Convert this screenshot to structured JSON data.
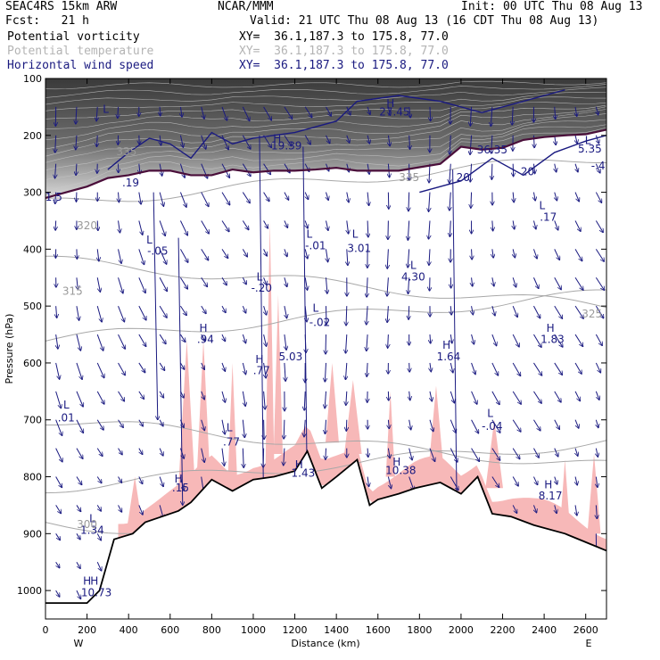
{
  "header": {
    "model": "SEAC4RS 15km ARW",
    "forecast": "Fcst:   21 h",
    "org": "NCAR/MMM",
    "init": "Init: 00 UTC Thu 08 Aug 13",
    "valid": "Valid: 21 UTC Thu 08 Aug 13 (16 CDT Thu 08 Aug 13)",
    "legend": [
      {
        "name": "Potential vorticity",
        "xy": "XY=  36.1,187.3 to 175.8, 77.0",
        "color": "#000000"
      },
      {
        "name": "Potential temperature",
        "xy": "XY=  36.1,187.3 to 175.8, 77.0",
        "color": "#b4b4b4"
      },
      {
        "name": "Horizontal wind speed",
        "xy": "XY=  36.1,187.3 to 175.8, 77.0",
        "color": "#1a1a80"
      }
    ]
  },
  "chart_data": {
    "type": "cross-section",
    "xlabel": "Distance (km)",
    "ylabel": "Pressure (hPa)",
    "xlim": [
      0,
      2700
    ],
    "ylim": [
      1050,
      100
    ],
    "x_ticks": [
      0,
      200,
      400,
      600,
      800,
      1000,
      1200,
      1400,
      1600,
      1800,
      2000,
      2200,
      2400,
      2600
    ],
    "y_ticks": [
      100,
      200,
      300,
      400,
      500,
      600,
      700,
      800,
      900,
      1000
    ],
    "x_end_labels": {
      "left": "W",
      "right": "E"
    },
    "terrain": [
      [
        0,
        1022
      ],
      [
        200,
        1022
      ],
      [
        260,
        1000
      ],
      [
        330,
        910
      ],
      [
        420,
        900
      ],
      [
        480,
        880
      ],
      [
        560,
        870
      ],
      [
        640,
        860
      ],
      [
        700,
        845
      ],
      [
        800,
        805
      ],
      [
        900,
        825
      ],
      [
        1000,
        805
      ],
      [
        1100,
        800
      ],
      [
        1200,
        790
      ],
      [
        1260,
        755
      ],
      [
        1330,
        820
      ],
      [
        1400,
        800
      ],
      [
        1500,
        770
      ],
      [
        1560,
        850
      ],
      [
        1600,
        840
      ],
      [
        1700,
        830
      ],
      [
        1780,
        820
      ],
      [
        1900,
        810
      ],
      [
        2000,
        830
      ],
      [
        2080,
        800
      ],
      [
        2150,
        865
      ],
      [
        2240,
        870
      ],
      [
        2350,
        885
      ],
      [
        2500,
        900
      ],
      [
        2600,
        915
      ],
      [
        2700,
        930
      ]
    ],
    "dynamic_tropopause": [
      [
        0,
        310
      ],
      [
        100,
        300
      ],
      [
        200,
        290
      ],
      [
        300,
        275
      ],
      [
        400,
        270
      ],
      [
        500,
        262
      ],
      [
        600,
        262
      ],
      [
        700,
        270
      ],
      [
        800,
        270
      ],
      [
        900,
        260
      ],
      [
        1000,
        265
      ],
      [
        1100,
        262
      ],
      [
        1200,
        262
      ],
      [
        1300,
        260
      ],
      [
        1400,
        257
      ],
      [
        1500,
        262
      ],
      [
        1600,
        262
      ],
      [
        1700,
        262
      ],
      [
        1800,
        256
      ],
      [
        1900,
        250
      ],
      [
        2000,
        220
      ],
      [
        2100,
        225
      ],
      [
        2200,
        222
      ],
      [
        2300,
        208
      ],
      [
        2400,
        203
      ],
      [
        2500,
        200
      ],
      [
        2600,
        198
      ],
      [
        2700,
        190
      ]
    ],
    "theta_levels": [
      300,
      315,
      320,
      325,
      335
    ],
    "pv_labels": [
      {
        "text": "L",
        "x": 290,
        "p": 160
      },
      {
        "text": "H",
        "x": 1115,
        "p": 212
      },
      {
        "text": "19.39",
        "x": 1160,
        "p": 225
      },
      {
        "text": "H",
        "x": 1660,
        "p": 150
      },
      {
        "text": "27.45",
        "x": 1680,
        "p": 165
      },
      {
        "text": "36.35",
        "x": 2150,
        "p": 232
      },
      {
        "text": "L",
        "x": 2610,
        "p": 215
      },
      {
        "text": "5.35",
        "x": 2620,
        "p": 230
      },
      {
        "text": "-.4",
        "x": 2660,
        "p": 260
      },
      {
        "text": "L",
        "x": 2390,
        "p": 330
      },
      {
        "text": ".17",
        "x": 2420,
        "p": 350
      },
      {
        "text": ".19",
        "x": 410,
        "p": 290
      },
      {
        "text": "1.5",
        "x": 40,
        "p": 315
      },
      {
        "text": "L",
        "x": 500,
        "p": 390
      },
      {
        "text": "-.05",
        "x": 540,
        "p": 410
      },
      {
        "text": "L",
        "x": 1270,
        "p": 380
      },
      {
        "text": "-.01",
        "x": 1300,
        "p": 400
      },
      {
        "text": "L",
        "x": 1490,
        "p": 380
      },
      {
        "text": "3.01",
        "x": 1510,
        "p": 405
      },
      {
        "text": "L",
        "x": 1770,
        "p": 435
      },
      {
        "text": "4.30",
        "x": 1770,
        "p": 455
      },
      {
        "text": "L",
        "x": 1030,
        "p": 455
      },
      {
        "text": "-.20",
        "x": 1040,
        "p": 475
      },
      {
        "text": "L",
        "x": 1300,
        "p": 510
      },
      {
        "text": "-.02",
        "x": 1320,
        "p": 535
      },
      {
        "text": "H",
        "x": 760,
        "p": 545
      },
      {
        "text": ".94",
        "x": 770,
        "p": 565
      },
      {
        "text": "5.03",
        "x": 1180,
        "p": 595
      },
      {
        "text": "H",
        "x": 1030,
        "p": 600
      },
      {
        "text": ".77",
        "x": 1040,
        "p": 620
      },
      {
        "text": "H",
        "x": 1930,
        "p": 575
      },
      {
        "text": "1.64",
        "x": 1940,
        "p": 595
      },
      {
        "text": "H",
        "x": 2430,
        "p": 545
      },
      {
        "text": "1.83",
        "x": 2440,
        "p": 565
      },
      {
        "text": "L",
        "x": 100,
        "p": 680
      },
      {
        "text": ".01",
        "x": 100,
        "p": 703
      },
      {
        "text": "L",
        "x": 885,
        "p": 720
      },
      {
        "text": ".77",
        "x": 895,
        "p": 745
      },
      {
        "text": "L",
        "x": 2140,
        "p": 695
      },
      {
        "text": "-.04",
        "x": 2150,
        "p": 718
      },
      {
        "text": "H",
        "x": 1220,
        "p": 785
      },
      {
        "text": "1.43",
        "x": 1240,
        "p": 800
      },
      {
        "text": "H",
        "x": 1690,
        "p": 780
      },
      {
        "text": "10.38",
        "x": 1710,
        "p": 795
      },
      {
        "text": "H",
        "x": 640,
        "p": 810
      },
      {
        "text": ".15",
        "x": 650,
        "p": 826
      },
      {
        "text": "H",
        "x": 2420,
        "p": 820
      },
      {
        "text": "8.17",
        "x": 2430,
        "p": 840
      },
      {
        "text": "L",
        "x": 225,
        "p": 880
      },
      {
        "text": "1.34",
        "x": 225,
        "p": 900
      },
      {
        "text": "H",
        "x": 200,
        "p": 990
      },
      {
        "text": "H",
        "x": 235,
        "p": 990
      },
      {
        "text": "10.73",
        "x": 245,
        "p": 1010
      }
    ],
    "theta_labels": [
      {
        "text": "335",
        "x": 390,
        "p": 235
      },
      {
        "text": "335",
        "x": 1750,
        "p": 280
      },
      {
        "text": "320",
        "x": 200,
        "p": 365
      },
      {
        "text": "315",
        "x": 130,
        "p": 480
      },
      {
        "text": "325",
        "x": 2630,
        "p": 520
      },
      {
        "text": "300",
        "x": 200,
        "p": 890
      }
    ],
    "wind_labels": [
      {
        "text": "20",
        "x": 2010,
        "p": 280
      },
      {
        "text": "20",
        "x": 2320,
        "p": 270
      }
    ]
  }
}
